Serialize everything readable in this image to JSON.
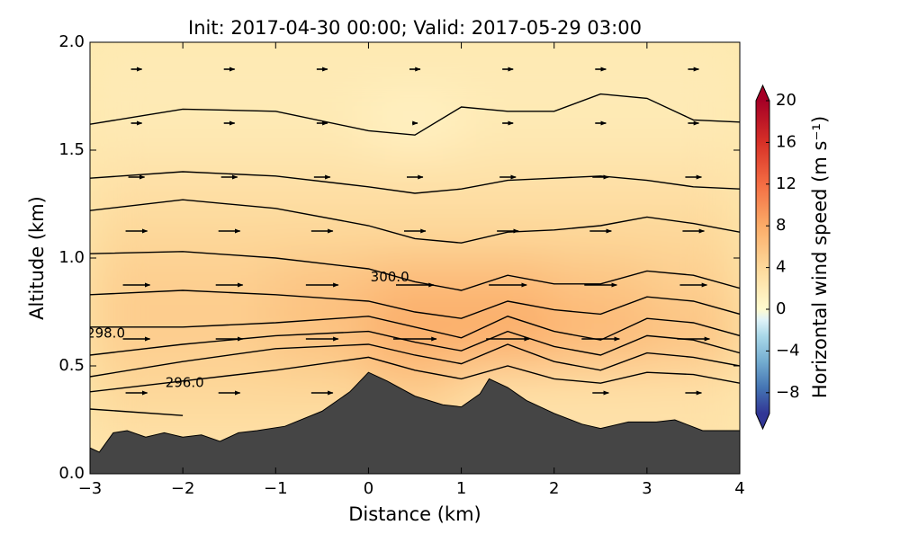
{
  "chart_data": {
    "type": "cross-section",
    "title": "Init: 2017-04-30 00:00; Valid: 2017-05-29 03:00",
    "x_label": "Distance (km)",
    "y_label": "Altitude (km)",
    "colorbar_label": "Horizontal wind speed (m s⁻¹)",
    "xlim": [
      -3,
      4
    ],
    "ylim": [
      0,
      2
    ],
    "xticks": [
      {
        "value": -3,
        "label": "−3"
      },
      {
        "value": -2,
        "label": "−2"
      },
      {
        "value": -1,
        "label": "−1"
      },
      0,
      1,
      2,
      3,
      4
    ],
    "yticks": [
      {
        "value": 0,
        "label": "0.0"
      },
      {
        "value": 0.5,
        "label": "0.5"
      },
      {
        "value": 1,
        "label": "1.0"
      },
      {
        "value": 1.5,
        "label": "1.5"
      },
      {
        "value": 2,
        "label": "2.0"
      }
    ],
    "clim": [
      -10,
      20
    ],
    "cticks": [
      {
        "value": -8,
        "label": "−8"
      },
      {
        "value": -4,
        "label": "−4"
      },
      0,
      4,
      8,
      12,
      16,
      20
    ],
    "colormap": [
      [
        -10,
        "#313695"
      ],
      [
        -7.5,
        "#4575b4"
      ],
      [
        -5,
        "#74add1"
      ],
      [
        -2.5,
        "#abd9e9"
      ],
      [
        -1,
        "#e0f3f8"
      ],
      [
        0,
        "#fffbd0"
      ],
      [
        4,
        "#fdd89a"
      ],
      [
        8,
        "#fbac68"
      ],
      [
        12,
        "#f46d43"
      ],
      [
        16,
        "#d73027"
      ],
      [
        20,
        "#a50026"
      ]
    ],
    "terrain_color": "#454545",
    "terrain": {
      "x": [
        -3,
        -2.9,
        -2.75,
        -2.6,
        -2.4,
        -2.2,
        -2,
        -1.8,
        -1.6,
        -1.4,
        -1.2,
        -0.9,
        -0.5,
        -0.2,
        0,
        0.2,
        0.5,
        0.8,
        1,
        1.2,
        1.3,
        1.5,
        1.7,
        2,
        2.3,
        2.5,
        2.8,
        3.1,
        3.3,
        3.6,
        4
      ],
      "y": [
        0.12,
        0.1,
        0.19,
        0.2,
        0.17,
        0.19,
        0.17,
        0.18,
        0.15,
        0.19,
        0.2,
        0.22,
        0.29,
        0.38,
        0.47,
        0.43,
        0.36,
        0.32,
        0.31,
        0.37,
        0.44,
        0.4,
        0.34,
        0.28,
        0.23,
        0.21,
        0.24,
        0.24,
        0.25,
        0.2,
        0.2
      ]
    },
    "field": {
      "x": [
        -2.5,
        -1.5,
        -0.5,
        0.5,
        1.5,
        2.5,
        3.5
      ],
      "z": [
        0.125,
        0.375,
        0.625,
        0.875,
        1.125,
        1.375,
        1.625,
        1.875
      ],
      "values": [
        [
          3,
          3,
          3,
          3,
          3,
          3,
          3
        ],
        [
          4,
          4,
          4,
          5,
          3,
          3,
          3
        ],
        [
          5,
          5,
          6,
          8,
          8,
          7,
          6
        ],
        [
          5,
          5,
          6,
          7,
          7,
          6,
          5
        ],
        [
          4,
          4,
          4,
          4,
          4,
          4,
          4
        ],
        [
          3,
          3,
          3,
          3,
          3,
          3,
          3
        ],
        [
          2,
          2,
          2,
          1,
          2,
          2,
          2
        ],
        [
          2,
          2,
          2,
          2,
          2,
          2,
          2
        ]
      ]
    },
    "contour_x": [
      -3,
      -2,
      -1,
      0,
      0.5,
      1,
      1.5,
      2,
      2.5,
      3,
      3.5,
      4
    ],
    "contours": [
      [
        1.62,
        1.69,
        1.68,
        1.59,
        1.57,
        1.7,
        1.68,
        1.68,
        1.76,
        1.74,
        1.64,
        1.63
      ],
      [
        1.37,
        1.4,
        1.38,
        1.33,
        1.3,
        1.32,
        1.36,
        1.37,
        1.38,
        1.36,
        1.33,
        1.32
      ],
      [
        1.22,
        1.27,
        1.23,
        1.15,
        1.09,
        1.07,
        1.12,
        1.13,
        1.15,
        1.19,
        1.16,
        1.12
      ],
      [
        1.02,
        1.03,
        1,
        0.95,
        0.89,
        0.85,
        0.92,
        0.88,
        0.88,
        0.94,
        0.92,
        0.86
      ],
      [
        0.83,
        0.85,
        0.83,
        0.8,
        0.75,
        0.72,
        0.8,
        0.76,
        0.74,
        0.82,
        0.8,
        0.74
      ],
      [
        0.68,
        0.68,
        0.7,
        0.73,
        0.68,
        0.63,
        0.73,
        0.66,
        0.62,
        0.72,
        0.7,
        0.64
      ],
      [
        0.55,
        0.6,
        0.64,
        0.66,
        0.61,
        0.57,
        0.66,
        0.59,
        0.55,
        0.64,
        0.62,
        0.56
      ],
      [
        0.45,
        0.52,
        0.58,
        0.6,
        0.55,
        0.51,
        0.6,
        0.52,
        0.48,
        0.56,
        0.54,
        0.5
      ],
      [
        0.38,
        0.43,
        0.48,
        0.54,
        0.48,
        0.44,
        0.5,
        0.44,
        0.42,
        0.47,
        0.46,
        0.42
      ],
      [
        0.3,
        0.27,
        null,
        null,
        null,
        null,
        null,
        null,
        null,
        null,
        null,
        null
      ]
    ],
    "contour_labels": [
      {
        "label": "300.0",
        "x": 0.23,
        "y": 0.91
      },
      {
        "label": "298.0",
        "x": -2.83,
        "y": 0.65
      },
      {
        "label": "296.0",
        "x": -1.98,
        "y": 0.42
      }
    ]
  }
}
